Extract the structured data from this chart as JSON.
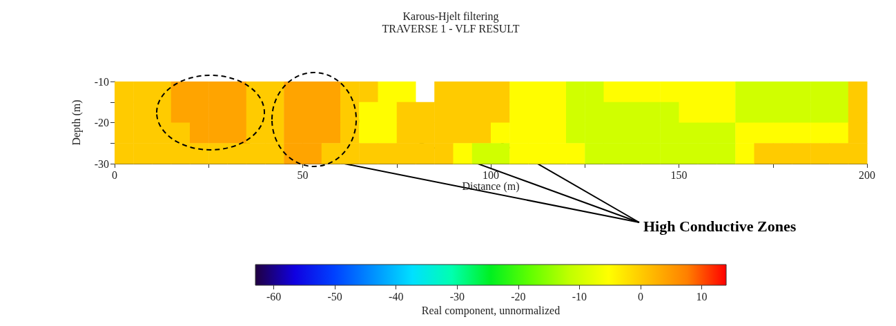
{
  "chart_data": {
    "type": "heatmap",
    "title": "Karous-Hjelt filtering",
    "subtitle": "TRAVERSE 1 - VLF RESULT",
    "xlabel": "Distance (m)",
    "ylabel": "Depth (m)",
    "clabel": "Real component, unnormalized",
    "xlim": [
      0,
      200
    ],
    "xticks": [
      0,
      {
        "value": 25,
        "label": null
      },
      50,
      {
        "value": 75,
        "label": null
      },
      100,
      {
        "value": 125,
        "label": null
      },
      150,
      {
        "value": 175,
        "label": null
      },
      200
    ],
    "ylim": [
      -30,
      -10
    ],
    "yticks": [
      -10,
      {
        "value": -15,
        "label": null
      },
      -20,
      {
        "value": -25,
        "label": null
      },
      -30
    ],
    "clim": [
      -63,
      14
    ],
    "cticks": [
      -60,
      -50,
      -40,
      -30,
      -20,
      -10,
      0,
      10
    ],
    "cells": [
      [
        0,
        0,
        0,
        4,
        4,
        4,
        4,
        0,
        0,
        4,
        4,
        4,
        0,
        0,
        -5,
        -5,
        null,
        0,
        0,
        0,
        0,
        -5,
        -5,
        -5,
        -10,
        -10,
        -5,
        -5,
        -5,
        -5,
        -5,
        -5,
        -5,
        -10,
        -10,
        -10,
        -10,
        -10,
        -10,
        0
      ],
      [
        0,
        0,
        0,
        4,
        4,
        4,
        4,
        0,
        0,
        4,
        4,
        4,
        0,
        -5,
        -5,
        0,
        0,
        0,
        0,
        0,
        0,
        -5,
        -5,
        -5,
        -10,
        -10,
        -10,
        -10,
        -10,
        -10,
        -5,
        -5,
        -5,
        -10,
        -10,
        -10,
        -10,
        -10,
        -10,
        0
      ],
      [
        0,
        0,
        0,
        0,
        4,
        4,
        4,
        0,
        0,
        4,
        4,
        4,
        0,
        -5,
        -5,
        0,
        0,
        0,
        0,
        0,
        -5,
        -5,
        -5,
        -5,
        -10,
        -10,
        -10,
        -10,
        -10,
        -10,
        -10,
        -10,
        -10,
        -5,
        -5,
        -5,
        -5,
        -5,
        -5,
        0
      ],
      [
        0,
        0,
        0,
        0,
        0,
        0,
        0,
        0,
        0,
        4,
        4,
        0,
        0,
        0,
        0,
        0,
        0,
        0,
        -5,
        -10,
        -10,
        -5,
        -5,
        -5,
        -5,
        -10,
        -10,
        -10,
        -10,
        -10,
        -10,
        -10,
        -10,
        -5,
        0,
        0,
        0,
        0,
        0,
        0
      ]
    ],
    "annotations": [
      "High Conductive Zones"
    ]
  }
}
